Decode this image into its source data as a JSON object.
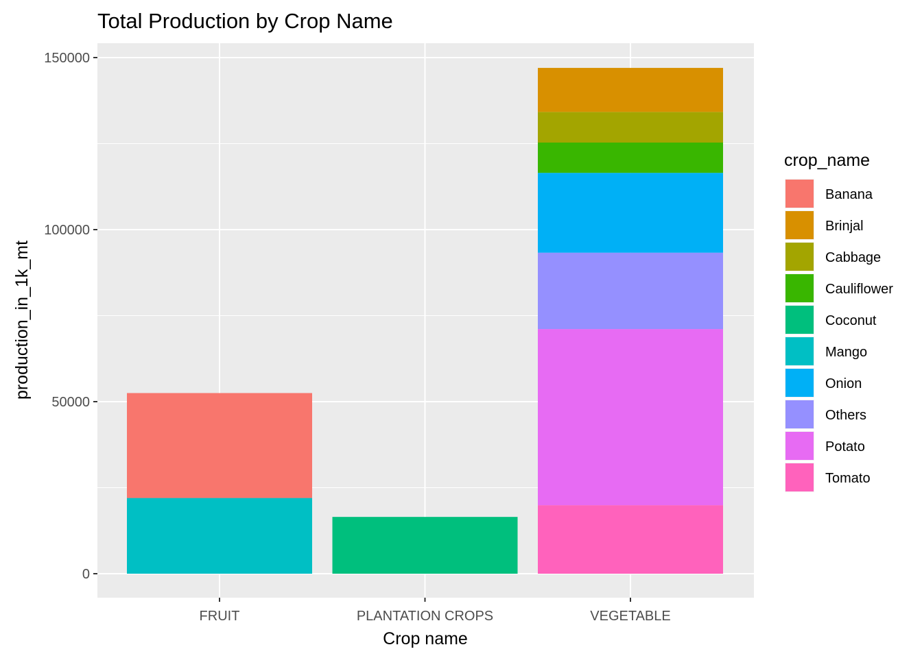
{
  "chart_data": {
    "type": "bar",
    "stacked": true,
    "title": "Total Production by Crop Name",
    "xlabel": "Crop name",
    "ylabel": "production_in_1k_mt",
    "categories": [
      "FRUIT",
      "PLANTATION CROPS",
      "VEGETABLE"
    ],
    "ylim": [
      0,
      150000
    ],
    "yticks": [
      0,
      50000,
      100000,
      150000
    ],
    "ytick_labels": [
      "0",
      "50000",
      "100000",
      "150000"
    ],
    "grid": true,
    "legend": {
      "title": "crop_name",
      "position": "right",
      "entries": [
        "Banana",
        "Brinjal",
        "Cabbage",
        "Cauliflower",
        "Coconut",
        "Mango",
        "Onion",
        "Others",
        "Potato",
        "Tomato"
      ]
    },
    "series": [
      {
        "name": "Banana",
        "color": "#F8766D",
        "values": [
          30500,
          0,
          0
        ]
      },
      {
        "name": "Brinjal",
        "color": "#D89000",
        "values": [
          0,
          0,
          12800
        ]
      },
      {
        "name": "Cabbage",
        "color": "#A3A500",
        "values": [
          0,
          0,
          8900
        ]
      },
      {
        "name": "Cauliflower",
        "color": "#39B600",
        "values": [
          0,
          0,
          8800
        ]
      },
      {
        "name": "Coconut",
        "color": "#00BF7D",
        "values": [
          0,
          16500,
          0
        ]
      },
      {
        "name": "Mango",
        "color": "#00BFC4",
        "values": [
          22000,
          0,
          0
        ]
      },
      {
        "name": "Onion",
        "color": "#00B0F6",
        "values": [
          0,
          0,
          23200
        ]
      },
      {
        "name": "Others",
        "color": "#9590FF",
        "values": [
          0,
          0,
          22200
        ]
      },
      {
        "name": "Potato",
        "color": "#E76BF3",
        "values": [
          0,
          0,
          51200
        ]
      },
      {
        "name": "Tomato",
        "color": "#FF62BC",
        "values": [
          0,
          0,
          19900
        ]
      }
    ]
  }
}
